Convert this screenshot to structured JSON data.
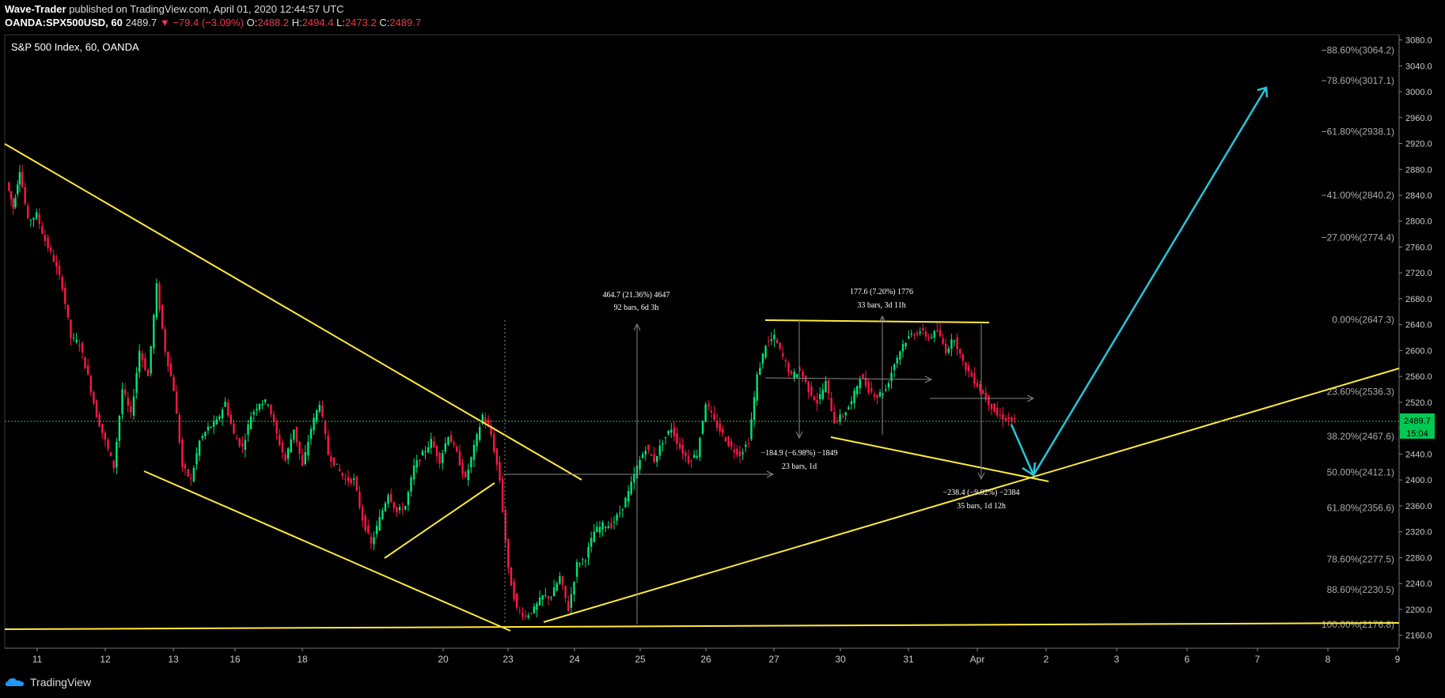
{
  "header": {
    "author": "Wave-Trader",
    "published": "published on TradingView.com, April 01, 2020 12:44:57 UTC",
    "symbol": "OANDA:SPX500USD, 60",
    "last": "2489.7",
    "change": "▼ −79.4 (−3.09%)",
    "o_label": "O:",
    "o": "2488.2",
    "h_label": "H:",
    "h": "2494.4",
    "l_label": "L:",
    "l": "2473.2",
    "c_label": "C:",
    "c": "2489.7"
  },
  "footer": {
    "brand": "TradingView"
  },
  "chart_data": {
    "type": "candlestick",
    "title": "S&P 500 Index, 60, OANDA",
    "ylim": [
      2140,
      3088
    ],
    "y_ticks": [
      "2160.0",
      "2200.0",
      "2240.0",
      "2280.0",
      "2320.0",
      "2360.0",
      "2400.0",
      "2440.0",
      "2480.0",
      "2520.0",
      "2560.0",
      "2600.0",
      "2640.0",
      "2680.0",
      "2720.0",
      "2760.0",
      "2800.0",
      "2840.0",
      "2880.0",
      "2920.0",
      "2960.0",
      "3000.0",
      "3040.0",
      "3080.0"
    ],
    "x_ticks": [
      "11",
      "12",
      "13",
      "16",
      "18",
      "20",
      "23",
      "24",
      "25",
      "26",
      "27",
      "30",
      "31",
      "Apr",
      "2",
      "3",
      "6",
      "7",
      "8",
      "9"
    ],
    "last_price": {
      "value": 2489.7,
      "label": "2489.7",
      "countdown": "15:04"
    },
    "fib_levels": [
      {
        "label": "−88.60%(3064.2)",
        "value": 3064.2
      },
      {
        "label": "−78.60%(3017.1)",
        "value": 3017.1
      },
      {
        "label": "−61.80%(2938.1)",
        "value": 2938.1
      },
      {
        "label": "−41.00%(2840.2)",
        "value": 2840.2
      },
      {
        "label": "−27.00%(2774.4)",
        "value": 2774.4
      },
      {
        "label": "0.00%(2647.3)",
        "value": 2647.3
      },
      {
        "label": "23.60%(2536.3)",
        "value": 2536.3
      },
      {
        "label": "38.20%(2467.6)",
        "value": 2467.6
      },
      {
        "label": "50.00%(2412.1)",
        "value": 2412.1
      },
      {
        "label": "61.80%(2356.6)",
        "value": 2356.6
      },
      {
        "label": "78.60%(2277.5)",
        "value": 2277.5
      },
      {
        "label": "88.60%(2230.5)",
        "value": 2230.5
      },
      {
        "label": "100.00%(2176.8)",
        "value": 2176.8
      }
    ],
    "measurements": [
      {
        "line1": "464.7 (21.36%) 4647",
        "line2": "92 bars, 6d 3h"
      },
      {
        "line1": "177.6 (7.20%) 1776",
        "line2": "33 bars, 3d 11h"
      },
      {
        "line1": "−184.9 (−6.98%) −1849",
        "line2": "23 bars, 1d"
      },
      {
        "line1": "−238.4 (−9.02%) −2384",
        "line2": "35 bars, 1d 12h"
      }
    ],
    "price_path": [
      [
        0,
        2860
      ],
      [
        0.03,
        2820
      ],
      [
        0.06,
        2880
      ],
      [
        0.1,
        2800
      ],
      [
        0.14,
        2810
      ],
      [
        0.18,
        2770
      ],
      [
        0.22,
        2740
      ],
      [
        0.26,
        2700
      ],
      [
        0.3,
        2620
      ],
      [
        0.34,
        2610
      ],
      [
        0.38,
        2560
      ],
      [
        0.42,
        2500
      ],
      [
        0.46,
        2460
      ],
      [
        0.5,
        2420
      ],
      [
        0.54,
        2540
      ],
      [
        0.58,
        2500
      ],
      [
        0.62,
        2600
      ],
      [
        0.66,
        2560
      ],
      [
        0.7,
        2700
      ],
      [
        0.74,
        2600
      ],
      [
        0.78,
        2540
      ],
      [
        0.82,
        2420
      ],
      [
        0.86,
        2400
      ],
      [
        0.9,
        2460
      ],
      [
        0.94,
        2480
      ],
      [
        0.98,
        2490
      ],
      [
        1.02,
        2520
      ],
      [
        1.06,
        2470
      ],
      [
        1.1,
        2450
      ],
      [
        1.14,
        2500
      ],
      [
        1.18,
        2520
      ],
      [
        1.22,
        2520
      ],
      [
        1.26,
        2470
      ],
      [
        1.3,
        2430
      ],
      [
        1.34,
        2480
      ],
      [
        1.38,
        2420
      ],
      [
        1.42,
        2480
      ],
      [
        1.46,
        2520
      ],
      [
        1.5,
        2440
      ],
      [
        1.54,
        2420
      ],
      [
        1.58,
        2400
      ],
      [
        1.62,
        2400
      ],
      [
        1.66,
        2340
      ],
      [
        1.7,
        2300
      ],
      [
        1.74,
        2340
      ],
      [
        1.78,
        2380
      ],
      [
        1.82,
        2350
      ],
      [
        1.86,
        2360
      ],
      [
        1.9,
        2420
      ],
      [
        1.94,
        2440
      ],
      [
        1.98,
        2460
      ],
      [
        2.02,
        2430
      ],
      [
        2.06,
        2470
      ],
      [
        2.1,
        2440
      ],
      [
        2.14,
        2400
      ],
      [
        2.18,
        2450
      ],
      [
        2.22,
        2500
      ],
      [
        2.26,
        2470
      ],
      [
        2.3,
        2400
      ],
      [
        2.34,
        2260
      ],
      [
        2.38,
        2200
      ],
      [
        2.42,
        2190
      ],
      [
        2.46,
        2200
      ],
      [
        2.5,
        2220
      ],
      [
        2.54,
        2220
      ],
      [
        2.58,
        2250
      ],
      [
        2.62,
        2200
      ],
      [
        2.66,
        2270
      ],
      [
        2.7,
        2280
      ],
      [
        2.74,
        2320
      ],
      [
        2.78,
        2330
      ],
      [
        2.82,
        2330
      ],
      [
        2.86,
        2350
      ],
      [
        2.9,
        2380
      ],
      [
        2.94,
        2420
      ],
      [
        2.98,
        2450
      ],
      [
        3.02,
        2430
      ],
      [
        3.06,
        2460
      ],
      [
        3.1,
        2480
      ],
      [
        3.14,
        2450
      ],
      [
        3.18,
        2430
      ],
      [
        3.22,
        2440
      ],
      [
        3.26,
        2520
      ],
      [
        3.3,
        2490
      ],
      [
        3.34,
        2470
      ],
      [
        3.38,
        2450
      ],
      [
        3.42,
        2440
      ],
      [
        3.46,
        2460
      ],
      [
        3.5,
        2560
      ],
      [
        3.54,
        2610
      ],
      [
        3.58,
        2620
      ],
      [
        3.62,
        2590
      ],
      [
        3.66,
        2560
      ],
      [
        3.7,
        2570
      ],
      [
        3.74,
        2540
      ],
      [
        3.78,
        2520
      ],
      [
        3.82,
        2550
      ],
      [
        3.86,
        2490
      ],
      [
        3.9,
        2500
      ],
      [
        3.94,
        2520
      ],
      [
        3.98,
        2560
      ],
      [
        4.02,
        2540
      ],
      [
        4.06,
        2530
      ],
      [
        4.1,
        2540
      ],
      [
        4.14,
        2580
      ],
      [
        4.18,
        2610
      ],
      [
        4.22,
        2625
      ],
      [
        4.26,
        2630
      ],
      [
        4.3,
        2620
      ],
      [
        4.34,
        2630
      ],
      [
        4.38,
        2600
      ],
      [
        4.42,
        2620
      ],
      [
        4.46,
        2580
      ],
      [
        4.5,
        2560
      ],
      [
        4.54,
        2540
      ],
      [
        4.58,
        2520
      ],
      [
        4.62,
        2500
      ],
      [
        4.66,
        2495
      ],
      [
        4.7,
        2490
      ]
    ]
  }
}
